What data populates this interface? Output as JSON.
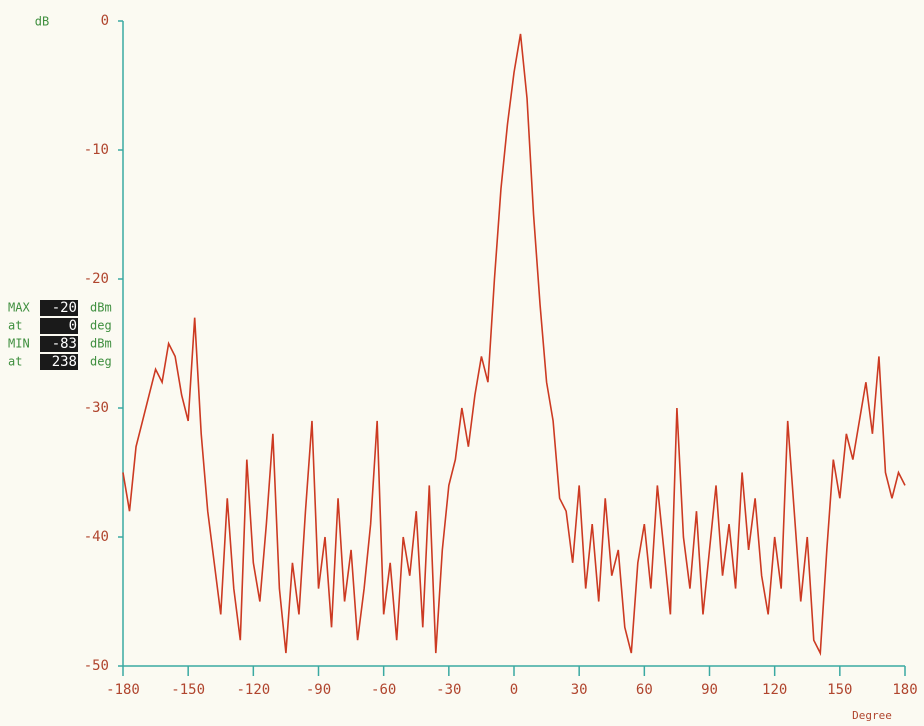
{
  "chart_data": {
    "type": "line",
    "y_label": "dB",
    "x_label": "Degree",
    "xlim": [
      -180,
      180
    ],
    "ylim": [
      -50,
      0
    ],
    "xticks": [
      -180,
      -150,
      -120,
      -90,
      -60,
      -30,
      0,
      30,
      60,
      90,
      120,
      150,
      180
    ],
    "yticks": [
      0,
      -10,
      -20,
      -30,
      -40,
      -50
    ],
    "series": [
      {
        "color": "#cc3a22",
        "x": [
          -180,
          -177,
          -174,
          -171,
          -168,
          -165,
          -162,
          -159,
          -156,
          -153,
          -150,
          -147,
          -144,
          -141,
          -138,
          -135,
          -132,
          -129,
          -126,
          -123,
          -120,
          -117,
          -114,
          -111,
          -108,
          -105,
          -102,
          -99,
          -96,
          -93,
          -90,
          -87,
          -84,
          -81,
          -78,
          -75,
          -72,
          -69,
          -66,
          -63,
          -60,
          -57,
          -54,
          -51,
          -48,
          -45,
          -42,
          -39,
          -36,
          -33,
          -30,
          -27,
          -24,
          -21,
          -18,
          -15,
          -12,
          -9,
          -6,
          -3,
          0,
          3,
          6,
          9,
          12,
          15,
          18,
          21,
          24,
          27,
          30,
          33,
          36,
          39,
          42,
          45,
          48,
          51,
          54,
          57,
          60,
          63,
          66,
          69,
          72,
          75,
          78,
          81,
          84,
          87,
          90,
          93,
          96,
          99,
          102,
          105,
          108,
          111,
          114,
          117,
          120,
          123,
          126,
          129,
          132,
          135,
          138,
          141,
          144,
          147,
          150,
          153,
          156,
          159,
          162,
          165,
          168,
          171,
          174,
          177,
          180
        ],
        "values": [
          -35,
          -38,
          -33,
          -31,
          -29,
          -27,
          -28,
          -25,
          -26,
          -29,
          -31,
          -23,
          -32,
          -38,
          -42,
          -46,
          -37,
          -44,
          -48,
          -34,
          -42,
          -45,
          -39,
          -32,
          -44,
          -49,
          -42,
          -46,
          -38,
          -31,
          -44,
          -40,
          -47,
          -37,
          -45,
          -41,
          -48,
          -44,
          -39,
          -31,
          -46,
          -42,
          -48,
          -40,
          -43,
          -38,
          -47,
          -36,
          -49,
          -41,
          -36,
          -34,
          -30,
          -33,
          -29,
          -26,
          -28,
          -20,
          -13,
          -8,
          -4,
          -1,
          -6,
          -15,
          -22,
          -28,
          -31,
          -37,
          -38,
          -42,
          -36,
          -44,
          -39,
          -45,
          -37,
          -43,
          -41,
          -47,
          -49,
          -42,
          -39,
          -44,
          -36,
          -41,
          -46,
          -30,
          -40,
          -44,
          -38,
          -46,
          -41,
          -36,
          -43,
          -39,
          -44,
          -35,
          -41,
          -37,
          -43,
          -46,
          -40,
          -44,
          -31,
          -38,
          -45,
          -40,
          -48,
          -49,
          -41,
          -34,
          -37,
          -32,
          -34,
          -31,
          -28,
          -32,
          -26,
          -35,
          -37,
          -35,
          -36
        ]
      }
    ],
    "readout": [
      {
        "label": "MAX",
        "value": -20,
        "unit": "dBm"
      },
      {
        "label": "at",
        "value": 0,
        "unit": "deg"
      },
      {
        "label": "MIN",
        "value": -83,
        "unit": "dBm"
      },
      {
        "label": "at",
        "value": 238,
        "unit": "deg"
      }
    ]
  }
}
